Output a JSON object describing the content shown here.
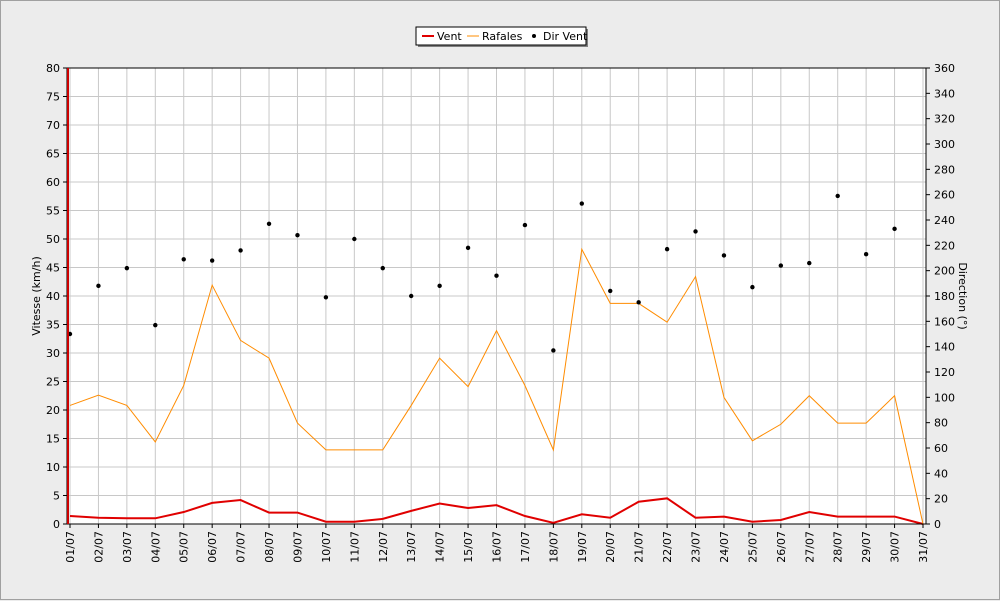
{
  "chart_data": {
    "type": "line",
    "title": "",
    "xlabel": "",
    "ylabel": "Vitesse (km/h)",
    "y2label": "Direction (°)",
    "ylim": [
      0,
      80
    ],
    "y2lim": [
      0,
      360
    ],
    "ystep": 5,
    "y2step": 20,
    "grid": true,
    "legend_position": "top-center",
    "categories": [
      "01/07",
      "02/07",
      "03/07",
      "04/07",
      "05/07",
      "06/07",
      "07/07",
      "08/07",
      "09/07",
      "10/07",
      "11/07",
      "12/07",
      "13/07",
      "14/07",
      "15/07",
      "16/07",
      "17/07",
      "18/07",
      "19/07",
      "20/07",
      "21/07",
      "22/07",
      "23/07",
      "24/07",
      "25/07",
      "26/07",
      "27/07",
      "28/07",
      "29/07",
      "30/07",
      "31/07"
    ],
    "series": [
      {
        "name": "Vent",
        "axis": "left",
        "kind": "line",
        "color": "#e00000",
        "values": [
          1.4,
          1.1,
          1.0,
          1.0,
          2.1,
          3.7,
          4.2,
          2.0,
          2.0,
          0.4,
          0.4,
          0.9,
          2.3,
          3.6,
          2.8,
          3.3,
          1.4,
          0.2,
          1.7,
          1.1,
          3.9,
          4.5,
          1.1,
          1.3,
          0.4,
          0.7,
          2.1,
          1.3,
          1.3,
          1.3,
          0.0
        ]
      },
      {
        "name": "Rafales",
        "axis": "left",
        "kind": "line",
        "color": "#ff8c00",
        "values": [
          20.8,
          22.6,
          20.8,
          14.4,
          24.3,
          41.9,
          32.2,
          29.1,
          17.7,
          13.0,
          13.0,
          13.0,
          20.8,
          29.1,
          24.1,
          33.9,
          24.3,
          13.0,
          48.2,
          38.7,
          38.7,
          35.4,
          43.4,
          22.2,
          14.6,
          17.5,
          22.5,
          17.7,
          17.7,
          22.5,
          0.0
        ]
      },
      {
        "name": "Dir Vent",
        "axis": "right",
        "kind": "scatter",
        "color": "#000000",
        "values": [
          150,
          188,
          202,
          157,
          209,
          208,
          216,
          237,
          228,
          179,
          225,
          202,
          180,
          188,
          218,
          196,
          236,
          137,
          253,
          184,
          175,
          217,
          231,
          212,
          187,
          204,
          206,
          259,
          213,
          233,
          null
        ]
      }
    ]
  }
}
